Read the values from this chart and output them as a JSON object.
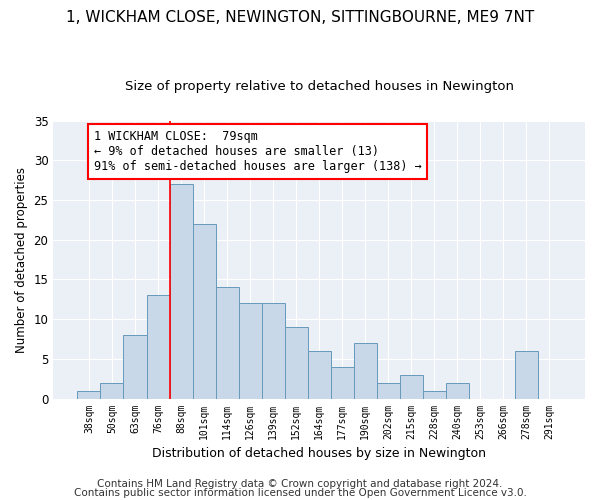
{
  "title": "1, WICKHAM CLOSE, NEWINGTON, SITTINGBOURNE, ME9 7NT",
  "subtitle": "Size of property relative to detached houses in Newington",
  "xlabel": "Distribution of detached houses by size in Newington",
  "ylabel": "Number of detached properties",
  "bar_color": "#c8d8e8",
  "bar_edge_color": "#6899bb",
  "background_color": "#eaf0f6",
  "categories": [
    "38sqm",
    "50sqm",
    "63sqm",
    "76sqm",
    "88sqm",
    "101sqm",
    "114sqm",
    "126sqm",
    "139sqm",
    "152sqm",
    "164sqm",
    "177sqm",
    "190sqm",
    "202sqm",
    "215sqm",
    "228sqm",
    "240sqm",
    "253sqm",
    "266sqm",
    "278sqm",
    "291sqm"
  ],
  "values": [
    1,
    2,
    8,
    13,
    27,
    22,
    14,
    12,
    12,
    9,
    6,
    4,
    7,
    2,
    3,
    1,
    2,
    0,
    0,
    6,
    0
  ],
  "ylim": [
    0,
    35
  ],
  "yticks": [
    0,
    5,
    10,
    15,
    20,
    25,
    30,
    35
  ],
  "property_line_bin": 3.5,
  "annotation_text": "1 WICKHAM CLOSE:  79sqm\n← 9% of detached houses are smaller (13)\n91% of semi-detached houses are larger (138) →",
  "footer1": "Contains HM Land Registry data © Crown copyright and database right 2024.",
  "footer2": "Contains public sector information licensed under the Open Government Licence v3.0.",
  "title_fontsize": 11,
  "subtitle_fontsize": 9.5,
  "annot_fontsize": 8.5,
  "footer_fontsize": 7.5,
  "ylabel_fontsize": 8.5,
  "xlabel_fontsize": 9
}
